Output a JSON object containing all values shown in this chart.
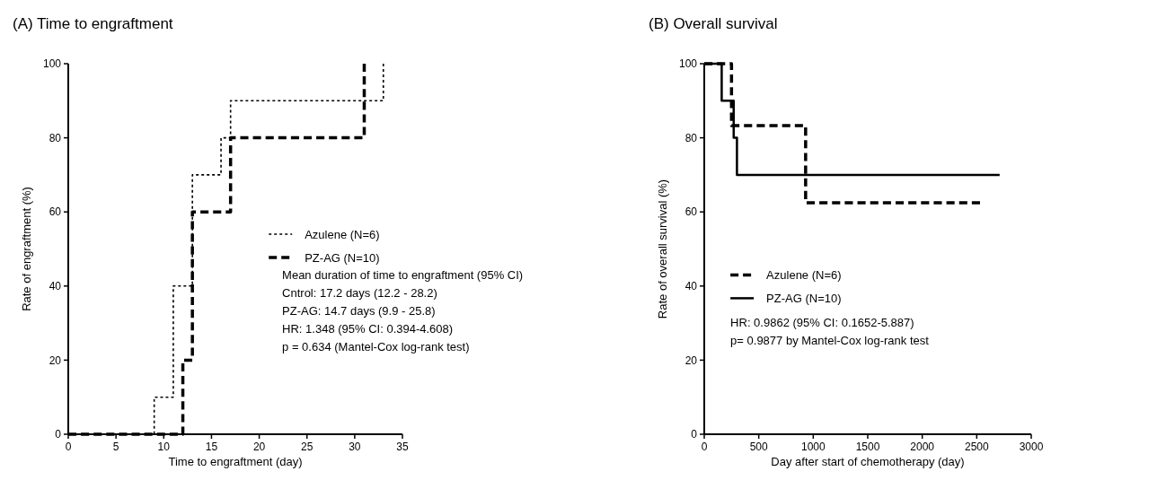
{
  "chart_data": [
    {
      "type": "step",
      "title": "(A) Time to engraftment",
      "xlabel": "Time to engraftment (day)",
      "ylabel": "Rate of engraftment (%)",
      "xlim": [
        0,
        35
      ],
      "xticks": [
        0,
        5,
        10,
        15,
        20,
        25,
        30,
        35
      ],
      "ylim": [
        0,
        100
      ],
      "yticks": [
        0,
        20,
        40,
        60,
        80,
        100
      ],
      "grid": false,
      "legend": "right",
      "series": [
        {
          "name": "Azulene (N=6)",
          "color": "#000000",
          "line_style": "dotted",
          "x": [
            0,
            9,
            11,
            13,
            16,
            17,
            33
          ],
          "values": [
            0,
            10,
            40,
            70,
            80,
            90,
            100
          ]
        },
        {
          "name": "PZ-AG (N=10)",
          "color": "#000000",
          "line_style": "dashed",
          "x": [
            0,
            12,
            13,
            17,
            31
          ],
          "values": [
            0,
            20,
            60,
            80,
            100
          ]
        }
      ],
      "annotations": [
        "Mean duration of time to engraftment  (95% CI)",
        "Cntrol: 17.2 days (12.2 - 28.2)",
        "PZ-AG: 14.7 days (9.9 - 25.8)",
        "HR: 1.348 (95% CI: 0.394-4.608)",
        "p = 0.634 (Mantel-Cox log-rank test)"
      ]
    },
    {
      "type": "step",
      "title": "(B) Overall survival",
      "xlabel": "Day after start of chemotherapy (day)",
      "ylabel": "Rate of overall survival (%)",
      "xlim": [
        0,
        3000
      ],
      "xticks": [
        0,
        500,
        1000,
        1500,
        2000,
        2500,
        3000
      ],
      "ylim": [
        0,
        100
      ],
      "yticks": [
        0,
        20,
        40,
        60,
        80,
        100
      ],
      "grid": false,
      "legend": "left",
      "series": [
        {
          "name": "Azulene (N=6)",
          "color": "#000000",
          "line_style": "dashed",
          "x": [
            0,
            250,
            930,
            2530
          ],
          "values": [
            100,
            83.3,
            62.5,
            62.5
          ]
        },
        {
          "name": "PZ-AG (N=10)",
          "color": "#000000",
          "line_style": "solid",
          "x": [
            0,
            160,
            270,
            300,
            2710
          ],
          "values": [
            100,
            90,
            80,
            70,
            70
          ]
        }
      ],
      "annotations": [
        "HR: 0.9862 (95% CI: 0.1652-5.887)",
        "p= 0.9877 by Mantel-Cox log-rank test"
      ]
    }
  ]
}
